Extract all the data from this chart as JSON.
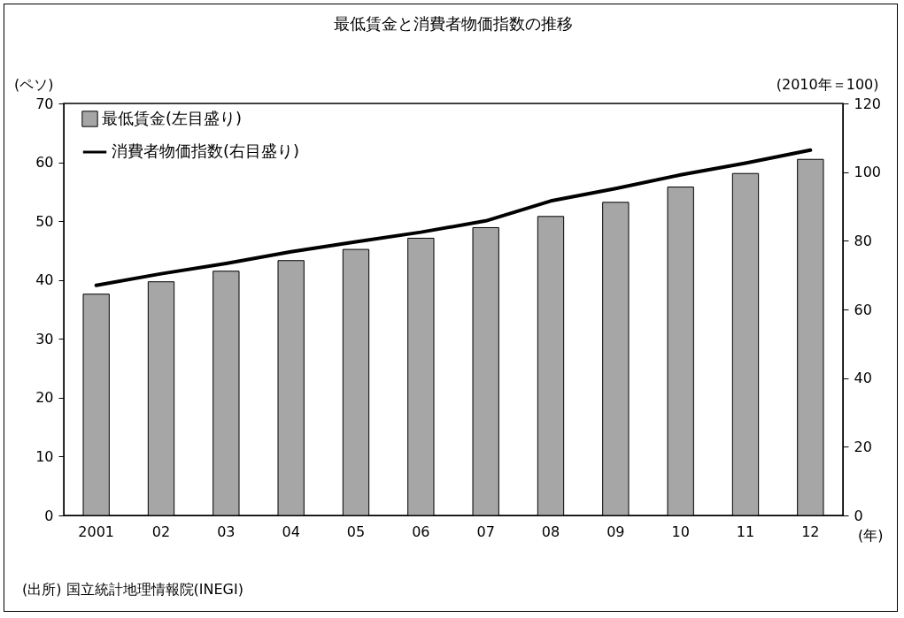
{
  "chart_data": {
    "type": "bar",
    "title": "最低賃金と消費者物価指数の推移",
    "ylabel": "(ペソ)",
    "y2label": "(2010年＝100)",
    "xlabel": "(年)",
    "categories": [
      "2001",
      "02",
      "03",
      "04",
      "05",
      "06",
      "07",
      "08",
      "09",
      "10",
      "11",
      "12"
    ],
    "series": [
      {
        "name": "最低賃金(左目盛り)",
        "color": "#a6a6a6",
        "values": [
          37.6,
          39.7,
          41.5,
          43.3,
          45.2,
          47.1,
          48.9,
          50.8,
          53.2,
          55.8,
          58.1,
          60.5
        ]
      },
      {
        "name": "消費者物価指数(右目盛り)",
        "type": "line",
        "axis": "y2",
        "color": "#000000",
        "values": [
          67,
          70.4,
          73.4,
          76.8,
          79.7,
          82.5,
          85.8,
          91.6,
          95.2,
          99.2,
          102.6,
          106.4
        ]
      }
    ],
    "ylim": [
      0,
      70
    ],
    "yticks": [
      0,
      10,
      20,
      30,
      40,
      50,
      60,
      70
    ],
    "y2lim": [
      0,
      120
    ],
    "y2ticks": [
      0,
      20,
      40,
      60,
      80,
      100,
      120
    ],
    "legend": "top left",
    "grid": false,
    "annotations": [
      "(出所) 国立統計地理情報院(INEGI)"
    ]
  }
}
